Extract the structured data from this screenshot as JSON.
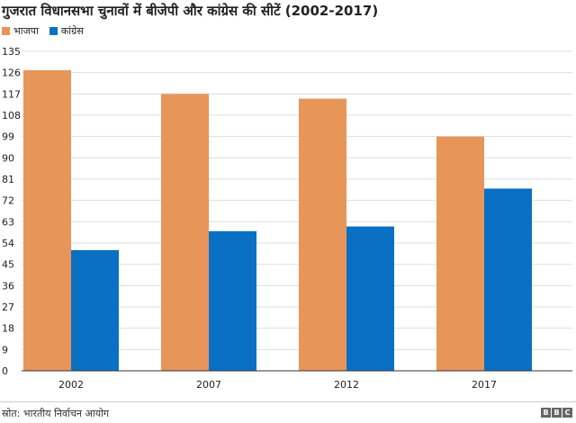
{
  "chart_data": {
    "type": "bar",
    "title": "गुजरात विधानसभा चुनावों में बीजेपी और कांग्रेस की सीटें (2002-2017)",
    "categories": [
      "2002",
      "2007",
      "2012",
      "2017"
    ],
    "series": [
      {
        "name": "भाजपा",
        "color": "#E8955A",
        "values": [
          127,
          117,
          115,
          99
        ]
      },
      {
        "name": "कांग्रेस",
        "color": "#0A70C4",
        "values": [
          51,
          59,
          61,
          77
        ]
      }
    ],
    "ylim": [
      0,
      135
    ],
    "yticks": [
      0,
      9,
      18,
      27,
      36,
      45,
      54,
      63,
      72,
      81,
      90,
      99,
      108,
      117,
      126,
      135
    ],
    "grid": true,
    "legend_position": "top-left"
  },
  "source": "स्रोत: भारतीय निर्वाचन आयोग",
  "logo": {
    "letters": [
      "B",
      "B",
      "C"
    ]
  }
}
